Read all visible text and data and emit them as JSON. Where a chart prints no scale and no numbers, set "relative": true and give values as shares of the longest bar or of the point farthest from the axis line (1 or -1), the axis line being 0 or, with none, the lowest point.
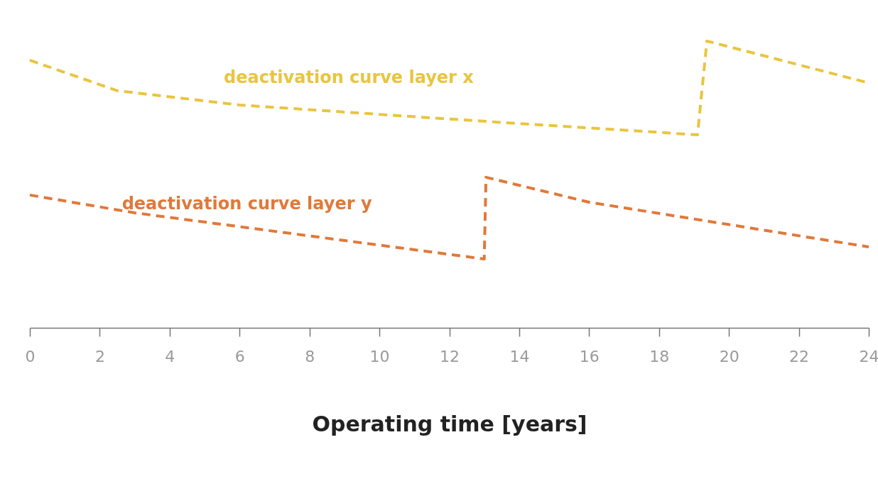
{
  "chart_data": {
    "type": "line",
    "relative": true,
    "xlabel": "Operating time [years]",
    "xlim": [
      0,
      24
    ],
    "xticks": [
      0,
      2,
      4,
      6,
      8,
      10,
      12,
      14,
      16,
      18,
      20,
      22,
      24
    ],
    "grid": false,
    "marker": "none",
    "line_style": "dashed",
    "series": [
      {
        "name": "deactivation curve layer x",
        "color": "#e9c53f",
        "x": [
          0,
          2.5,
          6,
          12,
          19.1,
          19.37,
          24
        ],
        "values": [
          0.933,
          0.827,
          0.777,
          0.728,
          0.673,
          1.0,
          0.854
        ]
      },
      {
        "name": "deactivation curve layer y",
        "color": "#e0793a",
        "x": [
          0,
          3,
          13,
          13.05,
          16,
          24
        ],
        "values": [
          0.463,
          0.401,
          0.24,
          0.525,
          0.438,
          0.282
        ]
      }
    ]
  }
}
